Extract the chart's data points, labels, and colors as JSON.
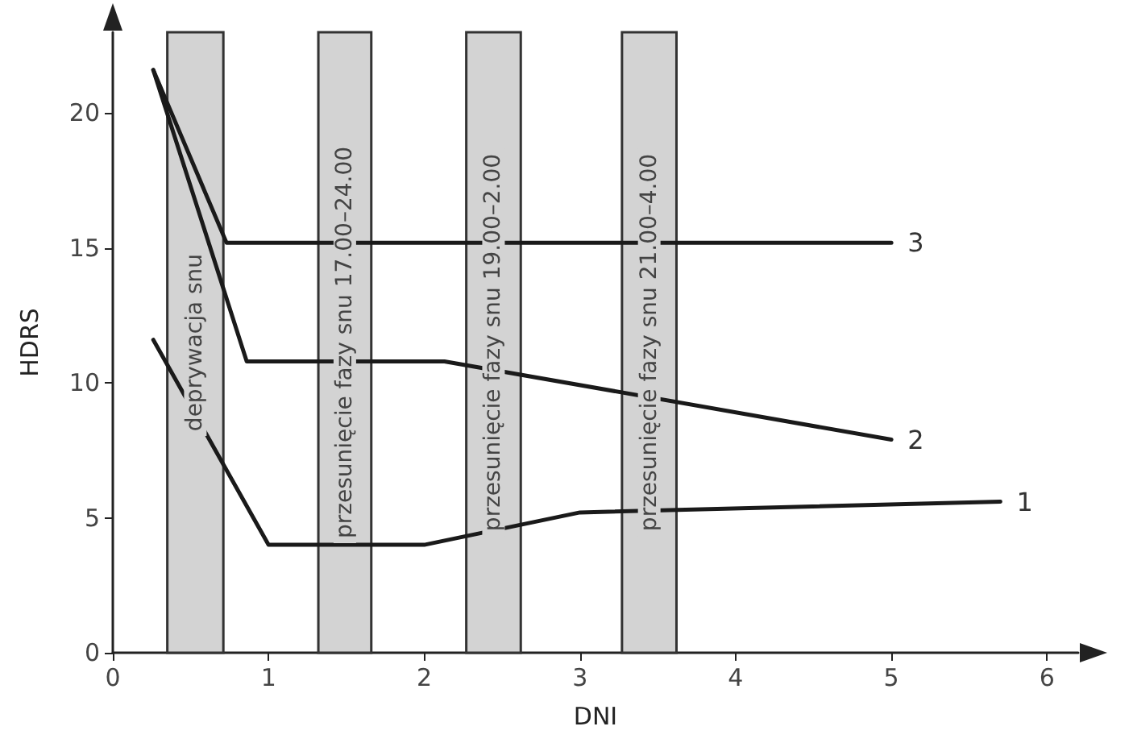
{
  "chart_data": {
    "type": "line",
    "xlabel": "DNI",
    "ylabel": "HDRS",
    "xlim": [
      0,
      6.2
    ],
    "xticks": [
      0,
      1,
      2,
      3,
      4,
      5,
      6
    ],
    "ylim": [
      0,
      23
    ],
    "yticks": [
      0,
      5,
      10,
      15,
      20
    ],
    "series": [
      {
        "name": "1",
        "color": "#1a1a1a",
        "x": [
          0.26,
          1.0,
          2.0,
          3.0,
          5.7
        ],
        "values": [
          11.6,
          4.0,
          4.0,
          5.2,
          5.6
        ]
      },
      {
        "name": "2",
        "color": "#1a1a1a",
        "x": [
          0.26,
          0.86,
          2.13,
          5.0
        ],
        "values": [
          21.6,
          10.8,
          10.8,
          7.9
        ]
      },
      {
        "name": "3",
        "color": "#1a1a1a",
        "x": [
          0.26,
          0.73,
          5.0
        ],
        "values": [
          21.6,
          15.2,
          15.2
        ]
      }
    ],
    "bands": [
      {
        "axis": "x",
        "from": 0.35,
        "to": 0.71,
        "label": "deprywacja snu",
        "color": "#d3d3d3"
      },
      {
        "axis": "x",
        "from": 1.32,
        "to": 1.66,
        "label": "przesunięcie fazy snu 17.00–24.00",
        "color": "#d3d3d3"
      },
      {
        "axis": "x",
        "from": 2.27,
        "to": 2.62,
        "label": "przesunięcie fazy snu 19.00–2.00",
        "color": "#d3d3d3"
      },
      {
        "axis": "x",
        "from": 3.27,
        "to": 3.62,
        "label": "przesunięcie fazy snu 21.00–4.00",
        "color": "#d3d3d3"
      }
    ],
    "grid": false,
    "legend": false,
    "marker": "none",
    "line_style": "solid"
  }
}
